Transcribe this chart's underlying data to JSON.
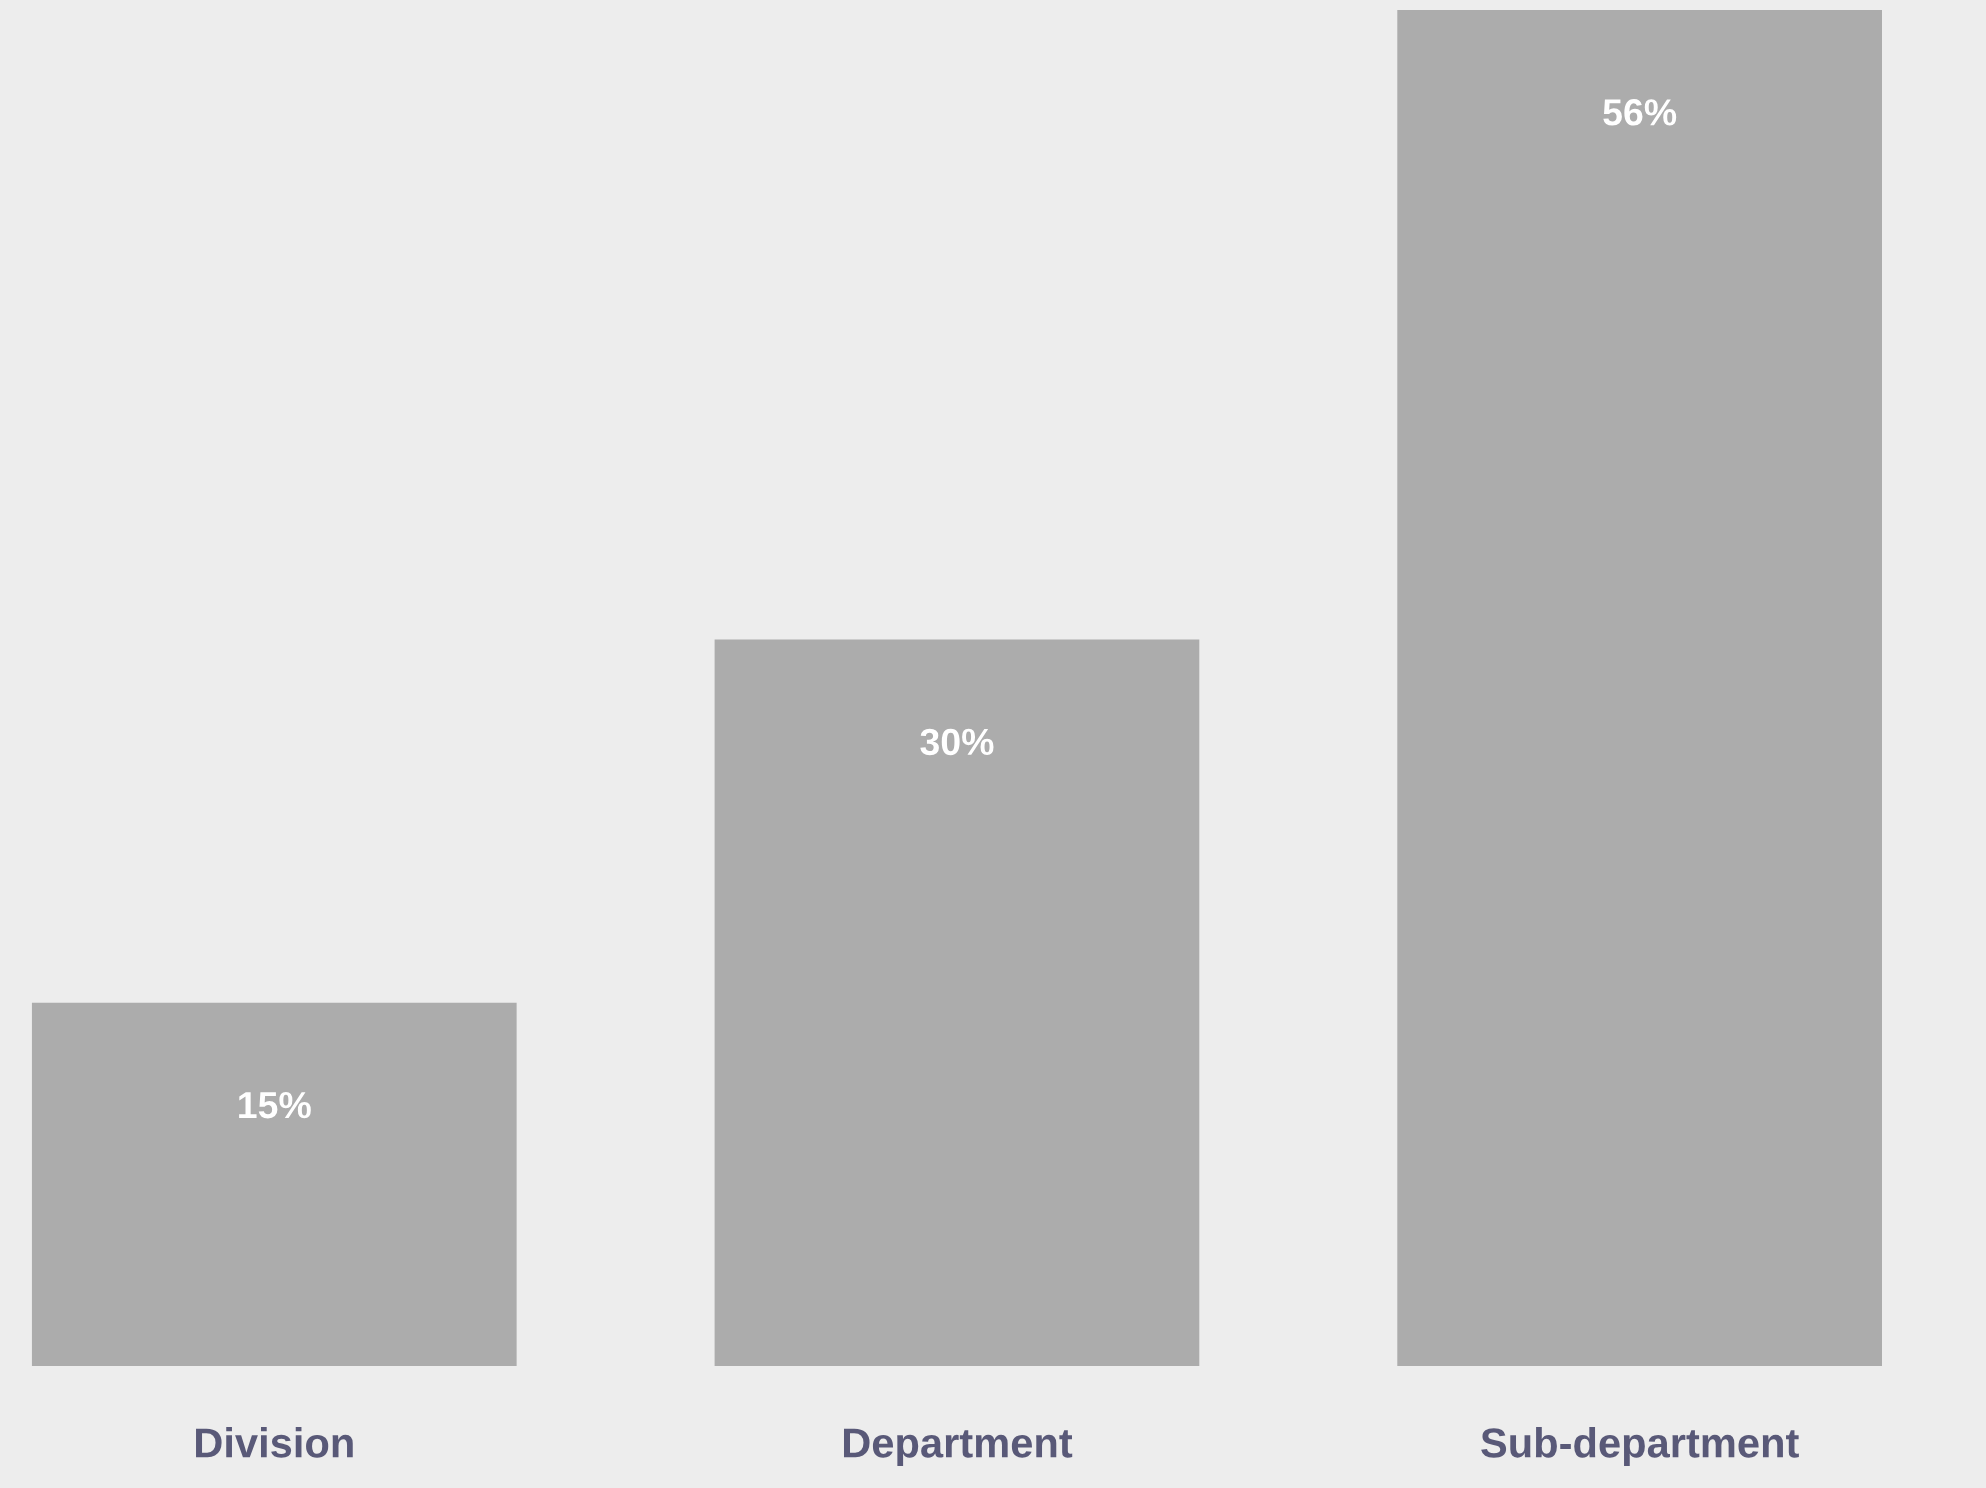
{
  "chart_data": {
    "type": "bar",
    "categories": [
      "Division",
      "Department",
      "Sub-department"
    ],
    "values": [
      15,
      30,
      56
    ],
    "color": "#acacac",
    "value_labels": [
      "15%",
      "30%",
      "56%"
    ],
    "ylim": [
      0,
      56
    ],
    "grid": false,
    "legend": false
  }
}
